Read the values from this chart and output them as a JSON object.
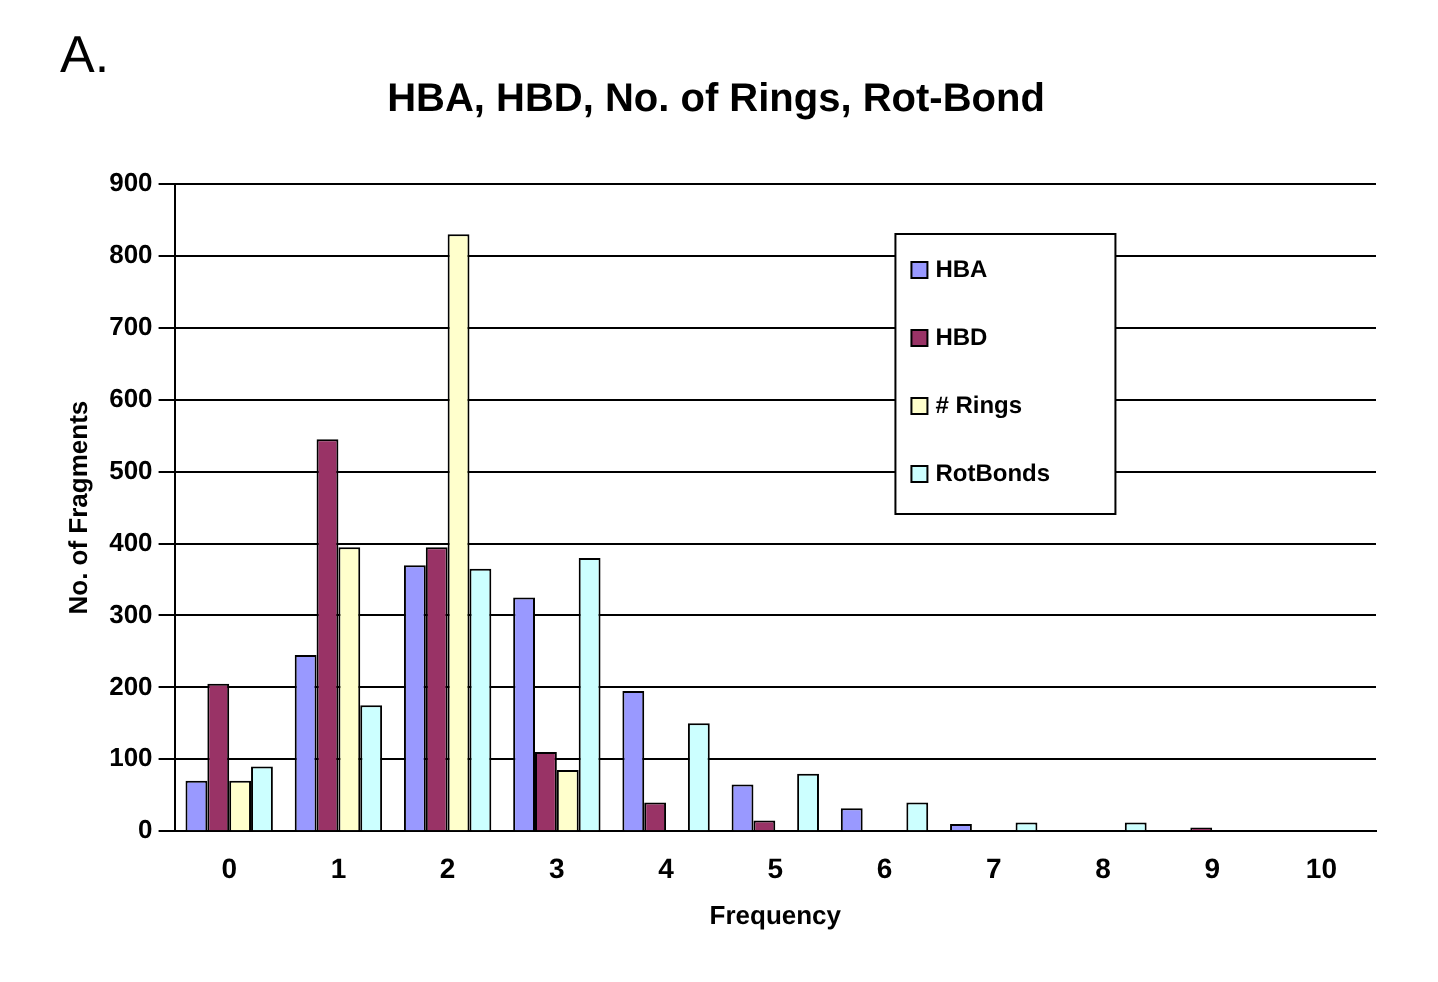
{
  "chart_data": {
    "type": "bar",
    "title": "HBA, HBD, No. of Rings, Rot-Bond",
    "xlabel": "Frequency",
    "ylabel": "No. of Fragments",
    "annotations": [
      "A."
    ],
    "categories": [
      "0",
      "1",
      "2",
      "3",
      "4",
      "5",
      "6",
      "7",
      "8",
      "9",
      "10"
    ],
    "series": [
      {
        "name": "HBA",
        "color": "#9999ff",
        "values": [
          70,
          245,
          370,
          325,
          195,
          65,
          32,
          10,
          null,
          null,
          0
        ]
      },
      {
        "name": "HBD",
        "color": "#993366",
        "values": [
          205,
          545,
          395,
          110,
          40,
          15,
          null,
          0,
          0,
          5,
          0
        ]
      },
      {
        "name": "# Rings",
        "color": "#ffffcc",
        "values": [
          70,
          395,
          830,
          85,
          0,
          0,
          0,
          0,
          0,
          0,
          0
        ]
      },
      {
        "name": "RotBonds",
        "color": "#ccffff",
        "values": [
          90,
          175,
          365,
          380,
          150,
          80,
          40,
          12,
          12,
          0,
          null
        ]
      }
    ],
    "ylim": [
      0,
      900
    ],
    "yticks": [
      0,
      100,
      200,
      300,
      400,
      500,
      600,
      700,
      800,
      900
    ],
    "grid": "y",
    "legend": "top right"
  }
}
